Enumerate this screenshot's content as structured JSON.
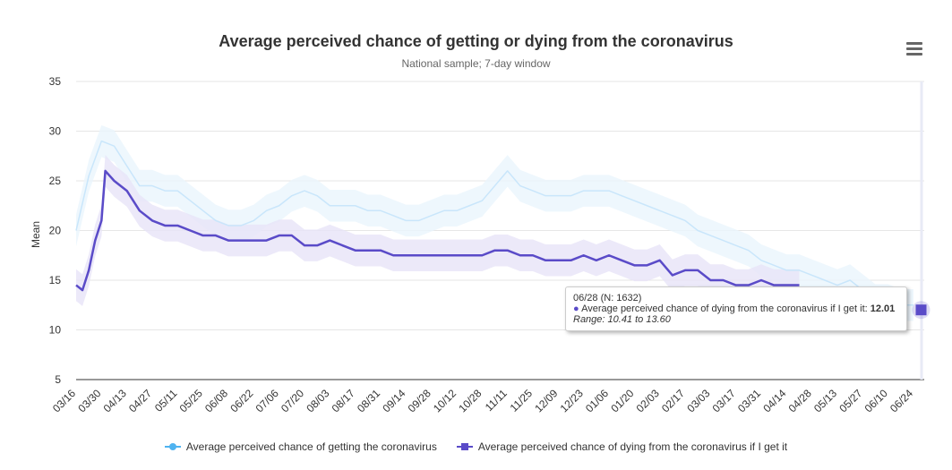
{
  "chart_data": {
    "type": "line",
    "title": "Average perceived chance of getting or dying from the coronavirus",
    "subtitle": "National sample; 7-day window",
    "ylabel": "Mean",
    "xlabel": "",
    "ylim": [
      5,
      35
    ],
    "yticks": [
      5,
      10,
      15,
      20,
      25,
      30,
      35
    ],
    "x_unit": "weeks since 03/16",
    "xticks": [
      "03/16",
      "03/30",
      "04/13",
      "04/27",
      "05/11",
      "05/25",
      "06/08",
      "06/22",
      "07/06",
      "07/20",
      "08/03",
      "08/17",
      "08/31",
      "09/14",
      "09/28",
      "10/12",
      "10/28",
      "11/11",
      "11/25",
      "12/09",
      "12/23",
      "01/06",
      "01/20",
      "02/03",
      "02/17",
      "03/03",
      "03/17",
      "03/31",
      "04/14",
      "04/28",
      "05/13",
      "05/27",
      "06/10",
      "06/24"
    ],
    "grid": true,
    "legend_position": "bottom",
    "band_halfwidth": 1.6,
    "series": [
      {
        "name": "Average perceived chance of getting the coronavirus",
        "color": "#c9e6fb",
        "legend_color": "#4fb3f0",
        "x": [
          0,
          1,
          2,
          3,
          4,
          5,
          6,
          7,
          8,
          9,
          10,
          11,
          12,
          13,
          14,
          15,
          16,
          17,
          18,
          19,
          20,
          21,
          22,
          23,
          24,
          25,
          26,
          27,
          28,
          29,
          30,
          31,
          32,
          33,
          34,
          35,
          36,
          37,
          38,
          39,
          40,
          41,
          42,
          43,
          44,
          45,
          46,
          47,
          48,
          49,
          50,
          51,
          52,
          53,
          54,
          55,
          56,
          57,
          58,
          59,
          60,
          61,
          62,
          63,
          64,
          65,
          66
        ],
        "y": [
          20,
          25.5,
          29,
          28.5,
          26.5,
          24.5,
          24.5,
          24,
          24,
          23,
          22,
          21,
          20.5,
          20.5,
          21,
          22,
          22.5,
          23.5,
          24,
          23.5,
          22.5,
          22.5,
          22.5,
          22,
          22,
          21.5,
          21,
          21,
          21.5,
          22,
          22,
          22.5,
          23,
          24.5,
          26,
          24.5,
          24,
          23.5,
          23.5,
          23.5,
          24,
          24,
          24,
          23.5,
          23,
          22.5,
          22,
          21.5,
          21,
          20,
          19.5,
          19,
          18.5,
          18,
          17,
          16.5,
          16,
          16,
          15.5,
          15,
          14.5,
          15,
          14,
          13,
          13,
          12.5,
          12.5
        ]
      },
      {
        "name": "Average perceived chance of dying from the coronavirus if I get it",
        "color": "#5a4bc8",
        "legend_color": "#5a4bc8",
        "x": [
          0,
          0.5,
          1,
          1.5,
          2,
          2.3,
          3,
          4,
          5,
          6,
          7,
          8,
          9,
          10,
          11,
          12,
          13,
          14,
          15,
          16,
          17,
          18,
          19,
          20,
          21,
          22,
          23,
          24,
          25,
          26,
          27,
          28,
          29,
          30,
          31,
          32,
          33,
          34,
          35,
          36,
          37,
          38,
          39,
          40,
          41,
          42,
          43,
          44,
          45,
          46,
          47,
          48,
          49,
          50,
          51,
          52,
          53,
          54,
          55,
          56,
          57
        ],
        "y": [
          14.5,
          14,
          16,
          19,
          21,
          26,
          25,
          24,
          22,
          21,
          20.5,
          20.5,
          20,
          19.5,
          19.5,
          19,
          19,
          19,
          19,
          19.5,
          19.5,
          18.5,
          18.5,
          19,
          18.5,
          18,
          18,
          18,
          17.5,
          17.5,
          17.5,
          17.5,
          17.5,
          17.5,
          17.5,
          17.5,
          18,
          18,
          17.5,
          17.5,
          17,
          17,
          17,
          17.5,
          17,
          17.5,
          17,
          16.5,
          16.5,
          17,
          15.5,
          16,
          16,
          15,
          15,
          14.5,
          14.5,
          15,
          14.5,
          14.5,
          14.5
        ]
      }
    ],
    "highlight": {
      "x": 66.6,
      "y": 12.01
    }
  },
  "tooltip": {
    "header": "06/28 (N: 1632)",
    "series_label": "Average perceived chance of dying from the coronavirus if I get it:",
    "value": "12.01",
    "range": "Range: 10.41 to 13.60"
  }
}
